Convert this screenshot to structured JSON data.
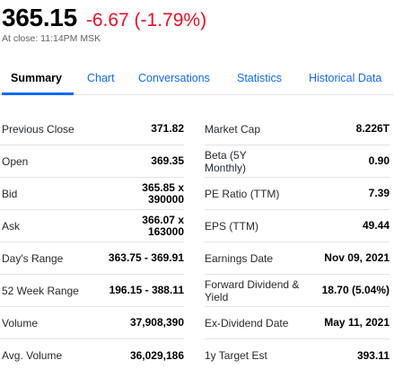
{
  "quote": {
    "price": "365.15",
    "change": "-6.67 (-1.79%)",
    "close_note": "At close: 11:14PM MSK"
  },
  "tabs": [
    {
      "label": "Summary",
      "active": true
    },
    {
      "label": "Chart",
      "active": false
    },
    {
      "label": "Conversations",
      "active": false
    },
    {
      "label": "Statistics",
      "active": false
    },
    {
      "label": "Historical Data",
      "active": false
    }
  ],
  "left_stats": [
    {
      "label": "Previous Close",
      "value": "371.82"
    },
    {
      "label": "Open",
      "value": "369.35"
    },
    {
      "label": "Bid",
      "value": "365.85 x 390000"
    },
    {
      "label": "Ask",
      "value": "366.07 x 163000"
    },
    {
      "label": "Day's Range",
      "value": "363.75 - 369.91"
    },
    {
      "label": "52 Week Range",
      "value": "196.15 - 388.11"
    },
    {
      "label": "Volume",
      "value": "37,908,390"
    },
    {
      "label": "Avg. Volume",
      "value": "36,029,186"
    }
  ],
  "right_stats": [
    {
      "label": "Market Cap",
      "value": "8.226T"
    },
    {
      "label": "Beta (5Y Monthly)",
      "value": "0.90"
    },
    {
      "label": "PE Ratio (TTM)",
      "value": "7.39"
    },
    {
      "label": "EPS (TTM)",
      "value": "49.44"
    },
    {
      "label": "Earnings Date",
      "value": "Nov 09, 2021"
    },
    {
      "label": "Forward Dividend & Yield",
      "value": "18.70 (5.04%)"
    },
    {
      "label": "Ex-Dividend Date",
      "value": "May 11, 2021"
    },
    {
      "label": "1y Target Est",
      "value": "393.11"
    }
  ],
  "colors": {
    "negative": "#eb0f29",
    "link": "#0f69ff",
    "divider": "#e0e4e9"
  }
}
